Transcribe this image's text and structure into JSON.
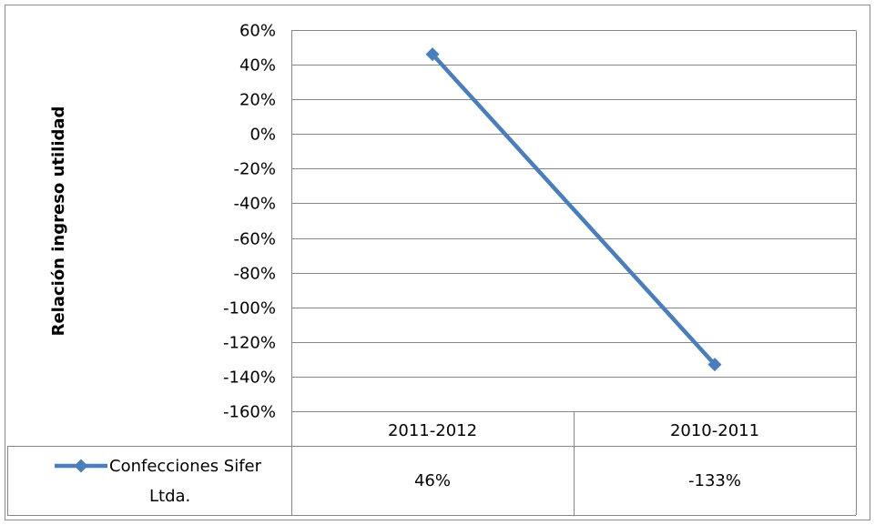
{
  "chart_data": {
    "type": "line",
    "title": "",
    "ylabel": "Relación ingreso utilidad",
    "xlabel": "",
    "categories": [
      "2011-2012",
      "2010-2011"
    ],
    "series": [
      {
        "name": "Confecciones Sifer Ltda.",
        "name_lines": [
          "Confecciones Sifer",
          "Ltda."
        ],
        "values": [
          46,
          -133
        ],
        "data_table_labels": [
          "46%",
          "-133%"
        ],
        "color": "#4a7ebb"
      }
    ],
    "yticks": [
      60,
      40,
      20,
      0,
      -20,
      -40,
      -60,
      -80,
      -100,
      -120,
      -140,
      -160
    ],
    "ytick_labels": [
      "60%",
      "40%",
      "20%",
      "0%",
      "-20%",
      "-40%",
      "-60%",
      "-80%",
      "-100%",
      "-120%",
      "-140%",
      "-160%"
    ],
    "ylim": [
      -160,
      60
    ],
    "grid": true,
    "legend": "data-table"
  }
}
